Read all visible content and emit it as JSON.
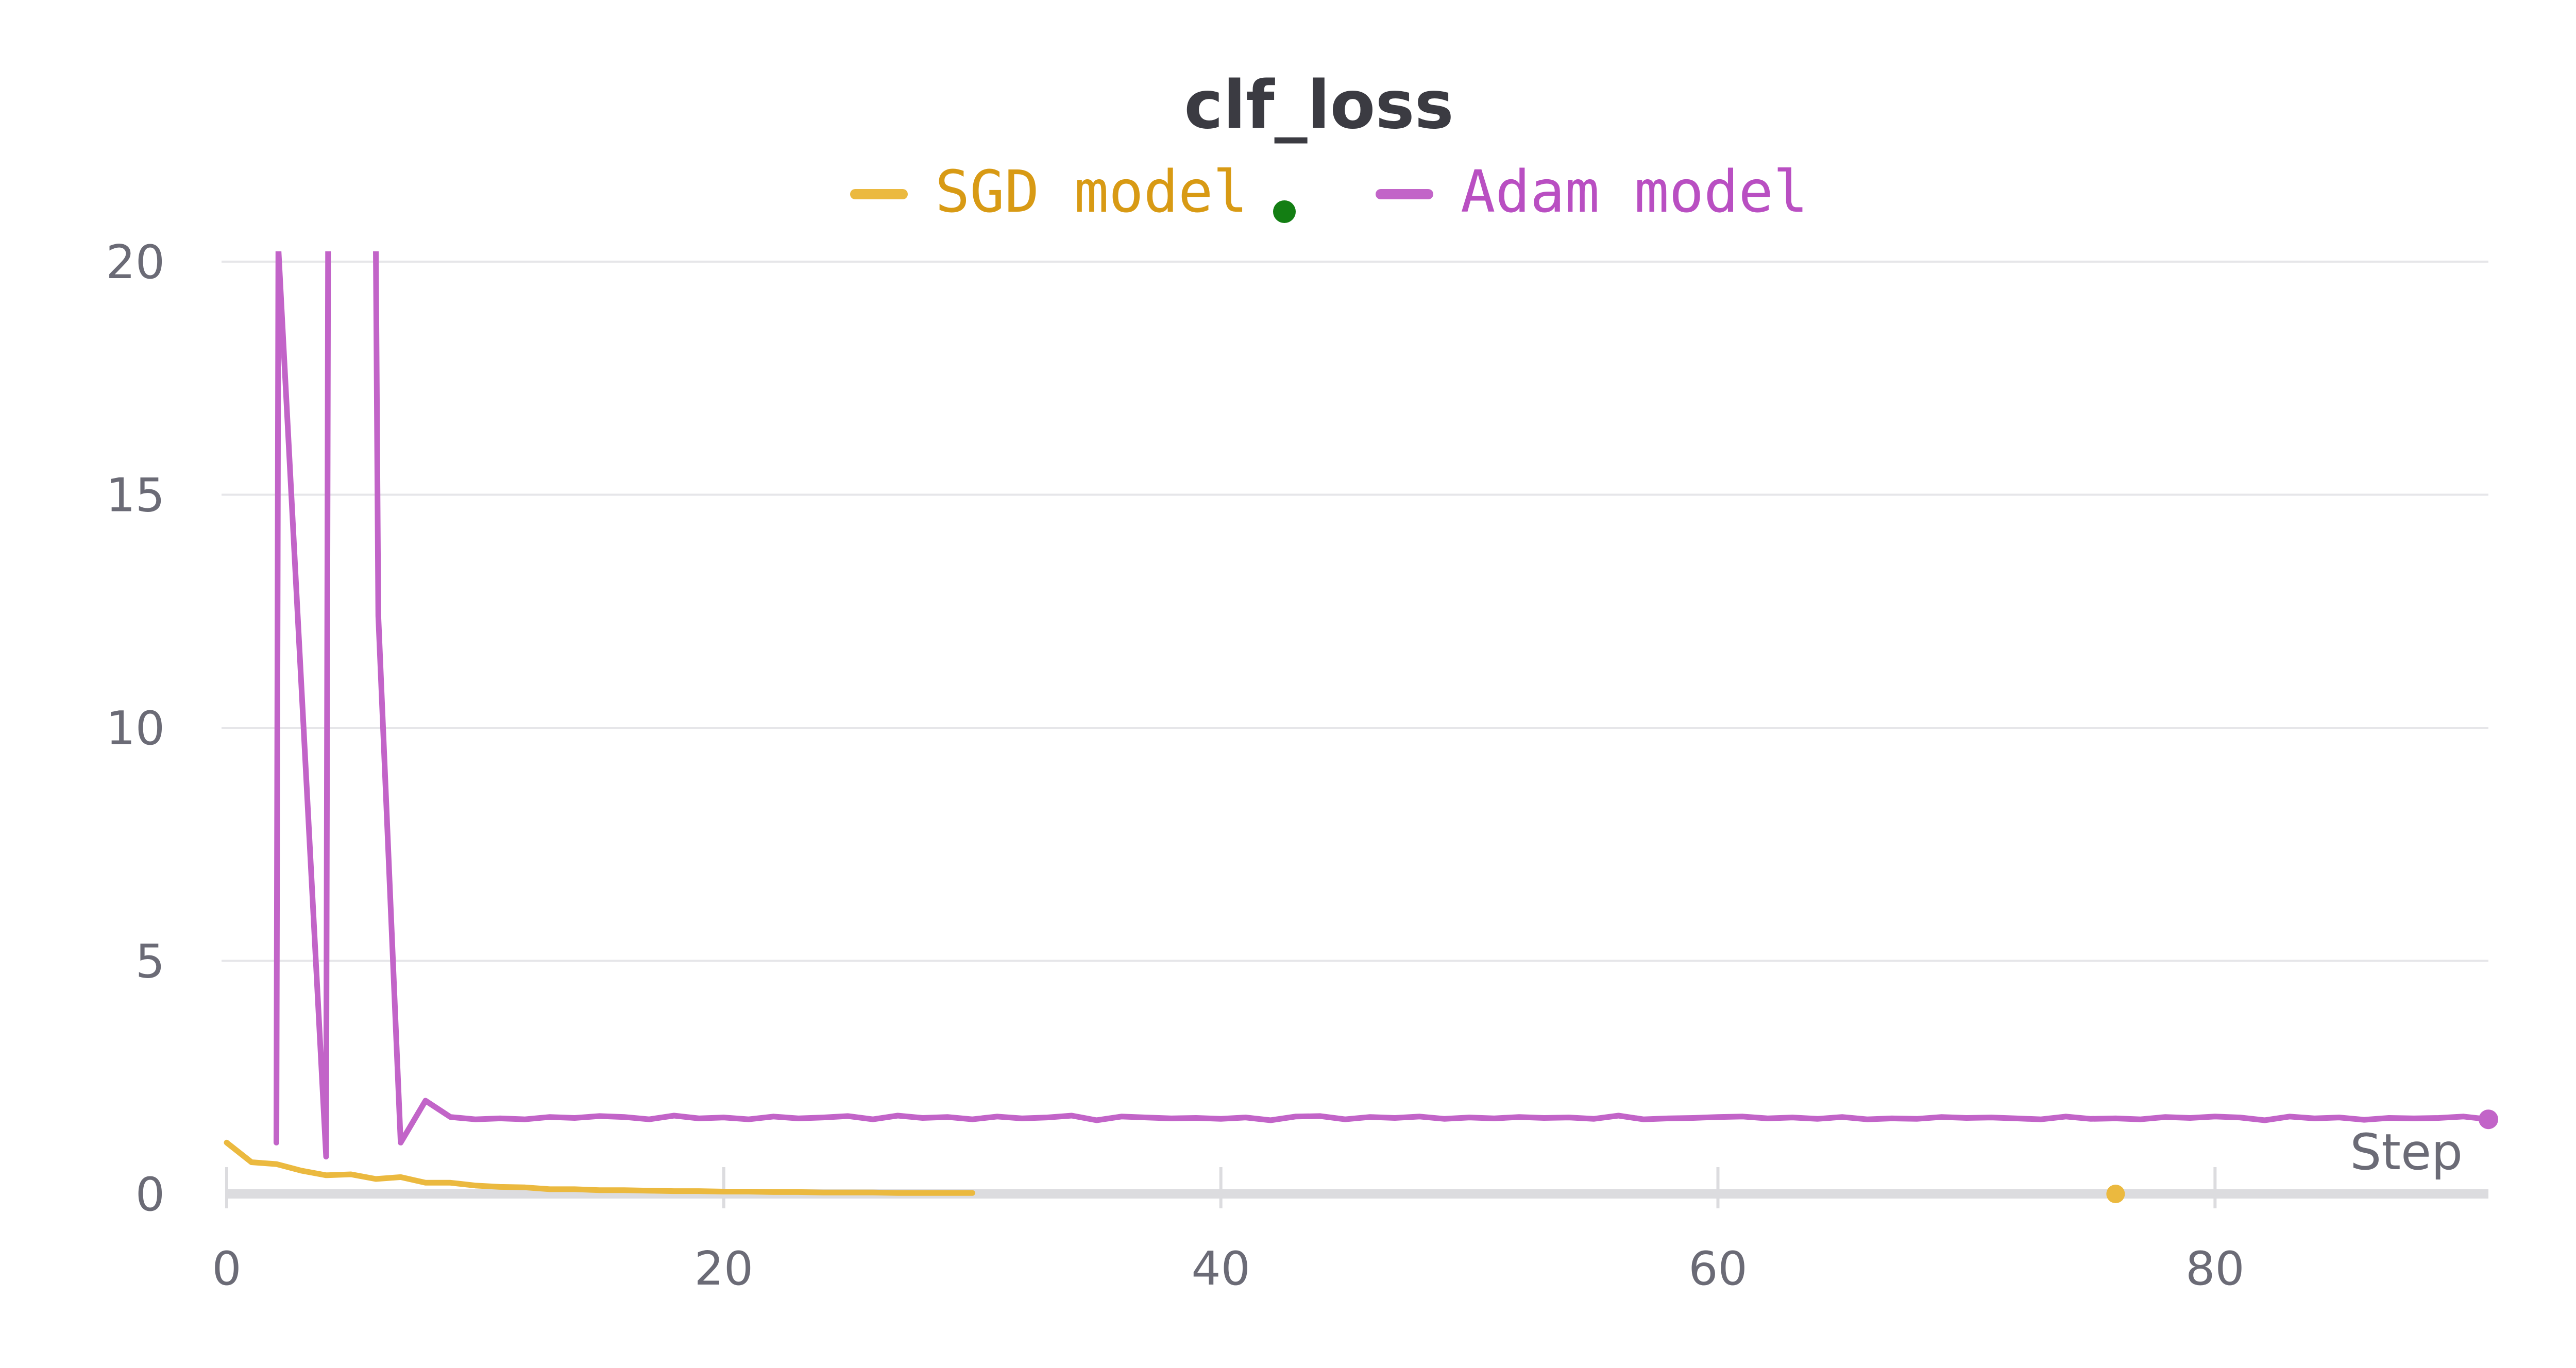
{
  "chart_data": {
    "type": "line",
    "title": "clf_loss",
    "xlabel": "Step",
    "ylabel": "",
    "xlim": [
      0,
      91
    ],
    "ylim": [
      0,
      20
    ],
    "x_ticks": [
      "0",
      "20",
      "40",
      "60",
      "80"
    ],
    "y_ticks": [
      "0",
      "5",
      "10",
      "15",
      "20"
    ],
    "grid": true,
    "legend_position": "top-center",
    "colors": {
      "sgd": "#ebb93f",
      "sgd_text": "#d89a14",
      "adam": "#c264c8",
      "adam_text": "#b94fc2",
      "marker": "#137e13",
      "grid": "#e6e6e9",
      "axis": "#dcdcdf"
    },
    "series": [
      {
        "name": "SGD model",
        "x": [
          0,
          1,
          2,
          3,
          4,
          5,
          6,
          7,
          8,
          9,
          10,
          11,
          12,
          13,
          14,
          15,
          16,
          17,
          18,
          19,
          20,
          21,
          22,
          23,
          24,
          25,
          26,
          27,
          28,
          29,
          30
        ],
        "values": [
          1.1,
          0.68,
          0.64,
          0.5,
          0.4,
          0.42,
          0.32,
          0.36,
          0.24,
          0.24,
          0.18,
          0.15,
          0.14,
          0.1,
          0.1,
          0.08,
          0.08,
          0.07,
          0.06,
          0.06,
          0.05,
          0.05,
          0.04,
          0.04,
          0.03,
          0.03,
          0.03,
          0.02,
          0.02,
          0.02,
          0.02
        ],
        "end_marker_x": 76,
        "end_marker_y": 0
      },
      {
        "name": "Adam model",
        "x": [
          2,
          2.08,
          4,
          4.08,
          6,
          6.1,
          7,
          8,
          9,
          10,
          11,
          12,
          13,
          14,
          15,
          16,
          17,
          18,
          19,
          20,
          21,
          22,
          23,
          24,
          25,
          26,
          27,
          28,
          29,
          30,
          31,
          32,
          33,
          34,
          35,
          36,
          37,
          38,
          39,
          40,
          41,
          42,
          43,
          44,
          45,
          46,
          47,
          48,
          49,
          50,
          51,
          52,
          53,
          54,
          55,
          56,
          57,
          58,
          59,
          60,
          61,
          62,
          63,
          64,
          65,
          66,
          67,
          68,
          69,
          70,
          71,
          72,
          73,
          74,
          75,
          76,
          77,
          78,
          79,
          80,
          81,
          82,
          83,
          84,
          85,
          86,
          87,
          88,
          89,
          90,
          91
        ],
        "values": [
          1.1,
          20.3,
          0.8,
          20.3,
          20.3,
          12.4,
          1.1,
          2.0,
          1.65,
          1.6,
          1.62,
          1.6,
          1.65,
          1.63,
          1.67,
          1.65,
          1.6,
          1.68,
          1.62,
          1.64,
          1.6,
          1.66,
          1.62,
          1.64,
          1.67,
          1.6,
          1.68,
          1.63,
          1.65,
          1.6,
          1.66,
          1.62,
          1.64,
          1.68,
          1.58,
          1.66,
          1.64,
          1.62,
          1.63,
          1.61,
          1.64,
          1.58,
          1.66,
          1.67,
          1.6,
          1.65,
          1.63,
          1.66,
          1.61,
          1.64,
          1.62,
          1.65,
          1.63,
          1.64,
          1.61,
          1.68,
          1.6,
          1.62,
          1.63,
          1.65,
          1.66,
          1.62,
          1.64,
          1.61,
          1.65,
          1.6,
          1.62,
          1.61,
          1.65,
          1.63,
          1.64,
          1.62,
          1.6,
          1.66,
          1.61,
          1.62,
          1.6,
          1.65,
          1.63,
          1.66,
          1.64,
          1.58,
          1.66,
          1.62,
          1.64,
          1.59,
          1.63,
          1.62,
          1.63,
          1.66,
          1.6
        ]
      }
    ],
    "marker_point": {
      "x": 91,
      "y": 1.6
    }
  }
}
